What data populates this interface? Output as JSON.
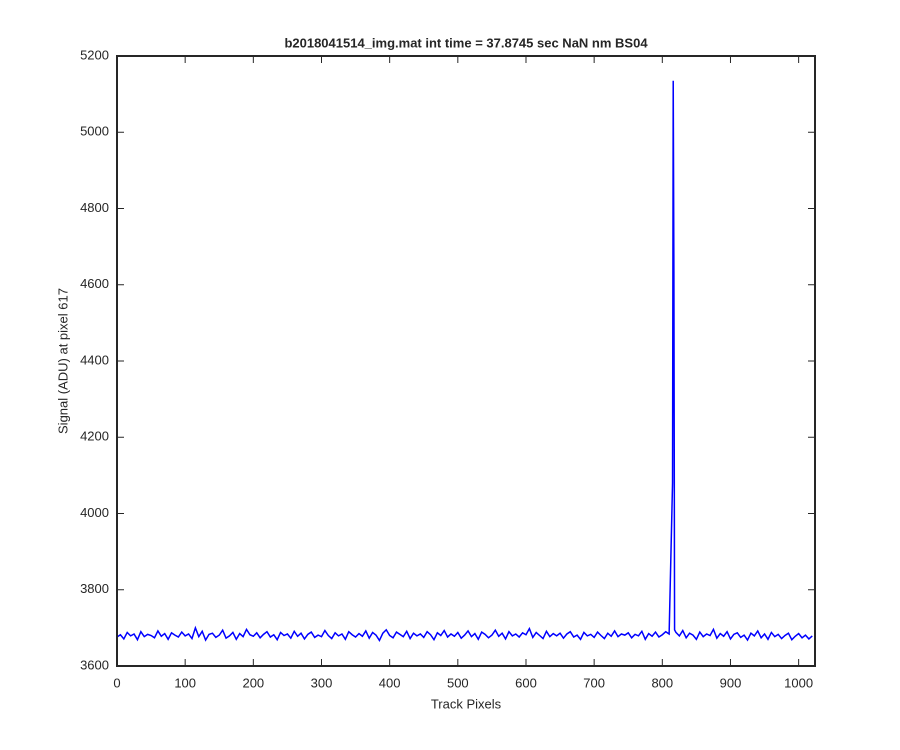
{
  "chart_data": {
    "type": "line",
    "title": "b2018041514_img.mat int time = 37.8745 sec  NaN nm BS04",
    "xlabel": "Track Pixels",
    "ylabel": "Signal (ADU) at pixel 617",
    "xlim": [
      0,
      1024
    ],
    "ylim": [
      3600,
      5200
    ],
    "xticks": [
      0,
      100,
      200,
      300,
      400,
      500,
      600,
      700,
      800,
      900,
      1000
    ],
    "yticks": [
      3600,
      3800,
      4000,
      4200,
      4400,
      4600,
      4800,
      5000,
      5200
    ],
    "x": [
      0,
      5,
      10,
      15,
      20,
      25,
      30,
      35,
      40,
      45,
      50,
      55,
      60,
      65,
      70,
      75,
      80,
      85,
      90,
      95,
      100,
      105,
      110,
      115,
      120,
      125,
      130,
      135,
      140,
      145,
      150,
      155,
      160,
      165,
      170,
      175,
      180,
      185,
      190,
      195,
      200,
      205,
      210,
      215,
      220,
      225,
      230,
      235,
      240,
      245,
      250,
      255,
      260,
      265,
      270,
      275,
      280,
      285,
      290,
      295,
      300,
      305,
      310,
      315,
      320,
      325,
      330,
      335,
      340,
      345,
      350,
      355,
      360,
      365,
      370,
      375,
      380,
      385,
      390,
      395,
      400,
      405,
      410,
      415,
      420,
      425,
      430,
      435,
      440,
      445,
      450,
      455,
      460,
      465,
      470,
      475,
      480,
      485,
      490,
      495,
      500,
      505,
      510,
      515,
      520,
      525,
      530,
      535,
      540,
      545,
      550,
      555,
      560,
      565,
      570,
      575,
      580,
      585,
      590,
      595,
      600,
      605,
      610,
      615,
      620,
      625,
      630,
      635,
      640,
      645,
      650,
      655,
      660,
      665,
      670,
      675,
      680,
      685,
      690,
      695,
      700,
      705,
      710,
      715,
      720,
      725,
      730,
      735,
      740,
      745,
      750,
      755,
      760,
      765,
      770,
      775,
      780,
      785,
      790,
      795,
      800,
      805,
      810,
      815,
      816,
      817,
      818,
      820,
      825,
      830,
      835,
      840,
      845,
      850,
      855,
      860,
      865,
      870,
      875,
      880,
      885,
      890,
      895,
      900,
      905,
      910,
      915,
      920,
      925,
      930,
      935,
      940,
      945,
      950,
      955,
      960,
      965,
      970,
      975,
      980,
      985,
      990,
      995,
      1000,
      1005,
      1010,
      1015,
      1020
    ],
    "series": [
      {
        "color": "#0000ff",
        "values": [
          3676,
          3682,
          3671,
          3688,
          3679,
          3684,
          3669,
          3690,
          3677,
          3683,
          3680,
          3674,
          3692,
          3678,
          3685,
          3670,
          3687,
          3681,
          3676,
          3689,
          3679,
          3684,
          3672,
          3700,
          3677,
          3691,
          3668,
          3683,
          3686,
          3675,
          3681,
          3694,
          3673,
          3679,
          3688,
          3670,
          3685,
          3677,
          3696,
          3682,
          3678,
          3687,
          3674,
          3683,
          3690,
          3676,
          3682,
          3669,
          3688,
          3680,
          3684,
          3673,
          3691,
          3678,
          3686,
          3671,
          3683,
          3689,
          3675,
          3681,
          3677,
          3693,
          3680,
          3672,
          3687,
          3679,
          3684,
          3670,
          3690,
          3682,
          3676,
          3685,
          3678,
          3692,
          3673,
          3688,
          3681,
          3667,
          3686,
          3695,
          3680,
          3674,
          3689,
          3683,
          3677,
          3691,
          3672,
          3686,
          3679,
          3684,
          3675,
          3690,
          3682,
          3669,
          3687,
          3680,
          3693,
          3676,
          3684,
          3678,
          3688,
          3673,
          3681,
          3692,
          3677,
          3685,
          3670,
          3689,
          3683,
          3674,
          3681,
          3694,
          3678,
          3686,
          3671,
          3690,
          3679,
          3684,
          3676,
          3687,
          3682,
          3698,
          3675,
          3688,
          3680,
          3672,
          3691,
          3677,
          3685,
          3679,
          3686,
          3673,
          3684,
          3690,
          3676,
          3681,
          3670,
          3688,
          3679,
          3683,
          3675,
          3689,
          3680,
          3672,
          3686,
          3678,
          3692,
          3677,
          3684,
          3681,
          3687,
          3674,
          3683,
          3679,
          3691,
          3670,
          3685,
          3678,
          3689,
          3676,
          3682,
          3690,
          3684,
          4080,
          5135,
          4635,
          3695,
          3688,
          3679,
          3693,
          3674,
          3686,
          3681,
          3670,
          3689,
          3677,
          3684,
          3680,
          3696,
          3673,
          3685,
          3678,
          3690,
          3671,
          3683,
          3687,
          3675,
          3681,
          3668,
          3686,
          3679,
          3692,
          3674,
          3684,
          3670,
          3688,
          3677,
          3683,
          3672,
          3680,
          3686,
          3669,
          3678,
          3685,
          3674,
          3681,
          3671,
          3679
        ]
      }
    ]
  }
}
